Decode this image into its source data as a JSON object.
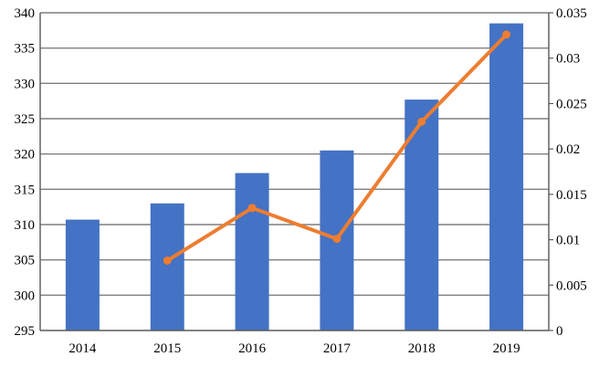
{
  "chart_data": {
    "type": "bar",
    "categories": [
      "2014",
      "2015",
      "2016",
      "2017",
      "2018",
      "2019"
    ],
    "series": [
      {
        "type": "bar",
        "axis": "left",
        "color": "#4472C4",
        "values": [
          310.7,
          313.0,
          317.3,
          320.5,
          327.7,
          338.5
        ]
      },
      {
        "type": "line",
        "axis": "right",
        "color": "#ED7D31",
        "values": [
          null,
          0.0077,
          0.0135,
          0.0101,
          0.023,
          0.0326
        ]
      }
    ],
    "y_left": {
      "range": [
        295,
        340
      ],
      "ticks": [
        "295",
        "300",
        "305",
        "310",
        "315",
        "320",
        "325",
        "330",
        "335",
        "340"
      ]
    },
    "y_right": {
      "range": [
        0,
        0.035
      ],
      "ticks": [
        "0",
        "0.005",
        "0.01",
        "0.015",
        "0.02",
        "0.025",
        "0.03",
        "0.035"
      ]
    },
    "grid": true,
    "legend": "none"
  }
}
